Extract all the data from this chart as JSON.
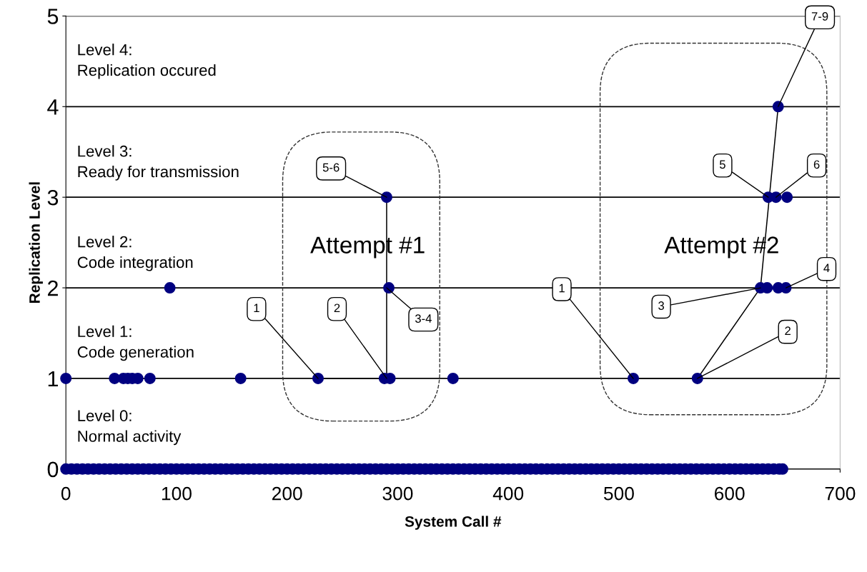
{
  "chart_data": {
    "type": "scatter",
    "xlabel": "System Call #",
    "ylabel": "Replication Level",
    "xlim": [
      0,
      700
    ],
    "xticks": [
      0,
      100,
      200,
      300,
      400,
      500,
      600,
      700
    ],
    "ylim": [
      0,
      5
    ],
    "yticks": [
      0,
      1,
      2,
      3,
      4,
      5
    ],
    "grid": "y",
    "series": [
      {
        "marker": "circle",
        "color": "#000080",
        "x": [
          0,
          5,
          10,
          15,
          20,
          25,
          30,
          35,
          40,
          45,
          50,
          55,
          60,
          65,
          70,
          75,
          80,
          85,
          90,
          95,
          100,
          105,
          110,
          115,
          120,
          125,
          130,
          135,
          140,
          145,
          150,
          155,
          160,
          165,
          170,
          175,
          180,
          185,
          190,
          195,
          200,
          205,
          210,
          215,
          220,
          225,
          230,
          235,
          240,
          245,
          250,
          255,
          260,
          265,
          270,
          275,
          280,
          285,
          290,
          295,
          300,
          305,
          310,
          315,
          320,
          325,
          330,
          335,
          340,
          345,
          350,
          355,
          360,
          365,
          370,
          375,
          380,
          385,
          390,
          395,
          400,
          405,
          410,
          415,
          420,
          425,
          430,
          435,
          440,
          445,
          450,
          455,
          460,
          465,
          470,
          475,
          480,
          485,
          490,
          495,
          500,
          505,
          510,
          515,
          520,
          525,
          530,
          535,
          540,
          545,
          550,
          555,
          560,
          565,
          570,
          575,
          580,
          585,
          590,
          595,
          600,
          605,
          610,
          615,
          620,
          625,
          630,
          635,
          640,
          645,
          648,
          0,
          44,
          52,
          56,
          60,
          65,
          76,
          158,
          228,
          288,
          293,
          350,
          513,
          571,
          94,
          292,
          628,
          634,
          644,
          651,
          290,
          635,
          642,
          652,
          644
        ],
        "values": [
          0,
          0,
          0,
          0,
          0,
          0,
          0,
          0,
          0,
          0,
          0,
          0,
          0,
          0,
          0,
          0,
          0,
          0,
          0,
          0,
          0,
          0,
          0,
          0,
          0,
          0,
          0,
          0,
          0,
          0,
          0,
          0,
          0,
          0,
          0,
          0,
          0,
          0,
          0,
          0,
          0,
          0,
          0,
          0,
          0,
          0,
          0,
          0,
          0,
          0,
          0,
          0,
          0,
          0,
          0,
          0,
          0,
          0,
          0,
          0,
          0,
          0,
          0,
          0,
          0,
          0,
          0,
          0,
          0,
          0,
          0,
          0,
          0,
          0,
          0,
          0,
          0,
          0,
          0,
          0,
          0,
          0,
          0,
          0,
          0,
          0,
          0,
          0,
          0,
          0,
          0,
          0,
          0,
          0,
          0,
          0,
          0,
          0,
          0,
          0,
          0,
          0,
          0,
          0,
          0,
          0,
          0,
          0,
          0,
          0,
          0,
          0,
          0,
          0,
          0,
          0,
          0,
          0,
          0,
          0,
          0,
          0,
          0,
          0,
          0,
          0,
          0,
          0,
          0,
          0,
          0,
          1,
          1,
          1,
          1,
          1,
          1,
          1,
          1,
          1,
          1,
          1,
          1,
          1,
          1,
          2,
          2,
          2,
          2,
          2,
          2,
          3,
          3,
          3,
          3,
          4
        ]
      },
      {
        "type": "line",
        "color": "#000000",
        "marker": "none",
        "x": [
          228,
          290,
          290,
          290
        ],
        "values": [
          1,
          1,
          2,
          3
        ]
      },
      {
        "type": "line",
        "color": "#000000",
        "marker": "none",
        "x": [
          513,
          571,
          628,
          636,
          644
        ],
        "values": [
          1,
          1,
          2,
          3,
          4
        ]
      }
    ],
    "annotations": [
      "Level 4:\nReplication occured",
      "Level 3:\nReady for transmission",
      "Level 2:\nCode integration",
      "Level 1:\nCode generation",
      "Level 0:\nNormal activity",
      "Attempt #1",
      "Attempt #2",
      {
        "text": "1",
        "x": 228,
        "y": 1
      },
      {
        "text": "2",
        "x": 290,
        "y": 1
      },
      {
        "text": "3-4",
        "x": 290,
        "y": 2
      },
      {
        "text": "5-6",
        "x": 290,
        "y": 3
      },
      {
        "text": "1",
        "x": 513,
        "y": 1
      },
      {
        "text": "2",
        "x": 571,
        "y": 1
      },
      {
        "text": "3",
        "x": 628,
        "y": 2
      },
      {
        "text": "4",
        "x": 651,
        "y": 2
      },
      {
        "text": "5",
        "x": 635,
        "y": 3
      },
      {
        "text": "6",
        "x": 642,
        "y": 3
      },
      {
        "text": "7-9",
        "x": 644,
        "y": 4
      }
    ]
  }
}
